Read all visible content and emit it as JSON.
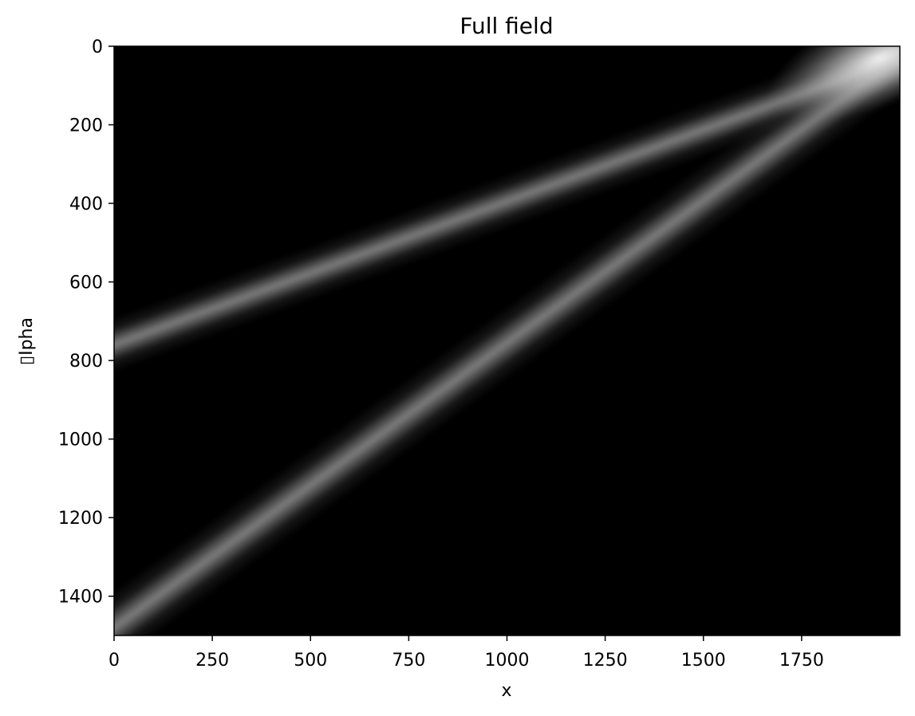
{
  "chart_data": {
    "type": "heatmap",
    "title": "Full field",
    "xlabel": "x",
    "ylabel": "▯Ipha",
    "xlim": [
      0,
      2000
    ],
    "ylim": [
      1500,
      0
    ],
    "y_axis_inverted": true,
    "colormap": "gray",
    "grid": false,
    "xticks": [
      0,
      250,
      500,
      750,
      1000,
      1250,
      1500,
      1750
    ],
    "xtick_labels": [
      "0",
      "250",
      "500",
      "750",
      "1000",
      "1250",
      "1500",
      "1750"
    ],
    "yticks": [
      0,
      200,
      400,
      600,
      800,
      1000,
      1200,
      1400
    ],
    "ytick_labels": [
      "0",
      "200",
      "400",
      "600",
      "800",
      "1000",
      "1200",
      "1400"
    ],
    "bands": [
      {
        "start": [
          0,
          760
        ],
        "end": [
          2000,
          30
        ],
        "peak_brightness": 0.5,
        "width_alpha": 60
      },
      {
        "start": [
          0,
          1480
        ],
        "end": [
          2000,
          30
        ],
        "peak_brightness": 0.5,
        "width_alpha": 70
      }
    ],
    "bright_spot": {
      "x": 1950,
      "alpha": 30,
      "peak_brightness": 0.95
    }
  }
}
